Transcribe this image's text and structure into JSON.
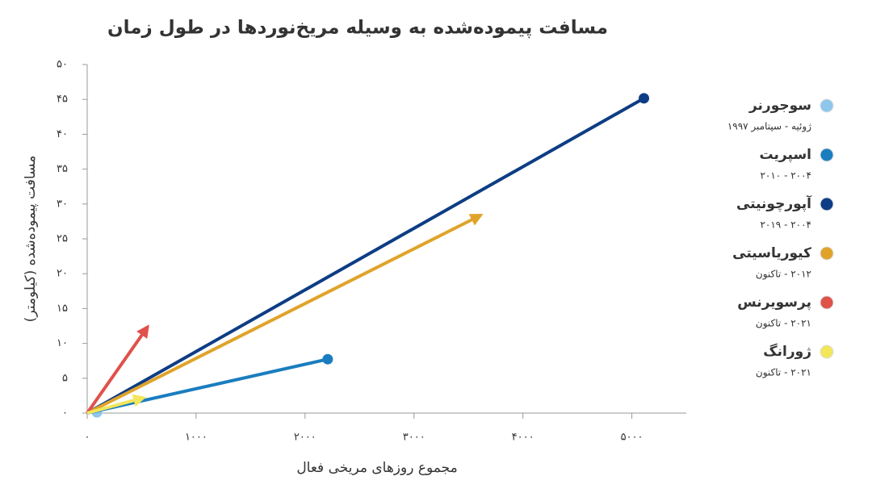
{
  "chart_data": {
    "type": "line",
    "title": "مسافت پیموده‌شده به وسیله مریخ‌نوردها در طول زمان",
    "x_label": "مجموع روزهای مریخی فعال",
    "y_label": "مسافت پیموده‌شده (کیلومتر)",
    "xlim": [
      0,
      5500
    ],
    "xticks": [
      {
        "value": 0,
        "label": "۰"
      },
      {
        "value": 1000,
        "label": "۱۰۰۰"
      },
      {
        "value": 2000,
        "label": "۲۰۰۰"
      },
      {
        "value": 3000,
        "label": "۳۰۰۰"
      },
      {
        "value": 4000,
        "label": "۴۰۰۰"
      },
      {
        "value": 5000,
        "label": "۵۰۰۰"
      }
    ],
    "ylim": [
      0,
      50
    ],
    "yticks": [
      {
        "value": 0,
        "label": "۰"
      },
      {
        "value": 5,
        "label": "۵"
      },
      {
        "value": 10,
        "label": "۱۰"
      },
      {
        "value": 15,
        "label": "۱۵"
      },
      {
        "value": 20,
        "label": "۲۰"
      },
      {
        "value": 25,
        "label": "۲۵"
      },
      {
        "value": 30,
        "label": "۳۰"
      },
      {
        "value": 35,
        "label": "۳۵"
      },
      {
        "value": 40,
        "label": "۴۰"
      },
      {
        "value": 45,
        "label": "۴۵"
      },
      {
        "value": 50,
        "label": "۵۰"
      }
    ],
    "series": [
      {
        "name": "سوجورنر",
        "period": "ژوئیه - سپتامبر ۱۹۹۷",
        "color": "#8ec6ec",
        "end": "dot",
        "x": [
          89
        ],
        "values": [
          0.1
        ]
      },
      {
        "name": "اسپریت",
        "period": "۲۰۰۴ - ۲۰۱۰",
        "color": "#1a7dbf",
        "end": "dot",
        "x": [
          0,
          2208
        ],
        "values": [
          0,
          7.73
        ]
      },
      {
        "name": "آپورچونیتی",
        "period": "۲۰۰۴ - ۲۰۱۹",
        "color": "#0d3d84",
        "end": "dot",
        "x": [
          0,
          5111
        ],
        "values": [
          0,
          45.16
        ]
      },
      {
        "name": "کیوریاسیتی",
        "period": "۲۰۱۲ - تاکنون",
        "color": "#e0a32a",
        "end": "arrow",
        "x": [
          0,
          3615
        ],
        "values": [
          0,
          28.4
        ]
      },
      {
        "name": "پرسویرنس",
        "period": "۲۰۲۱ - تاکنون",
        "color": "#e0514a",
        "end": "arrow",
        "x": [
          0,
          556
        ],
        "values": [
          0,
          12.4
        ]
      },
      {
        "name": "ژورانگ",
        "period": "۲۰۲۱ - تاکنون",
        "color": "#f2e65b",
        "end": "arrow",
        "x": [
          0,
          519
        ],
        "values": [
          0,
          2.2
        ]
      }
    ]
  }
}
